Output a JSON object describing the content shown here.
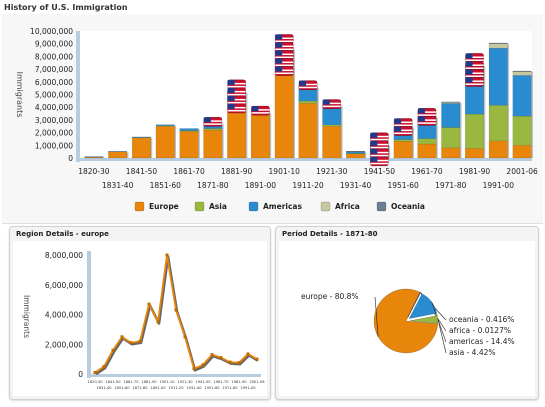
{
  "header": {
    "title": "History of U.S. Immigration"
  },
  "chart_data": [
    {
      "type": "bar",
      "stacked": true,
      "title": "",
      "ylabel": "Immigrants",
      "xlabel": "",
      "ylim": [
        0,
        10000000
      ],
      "y_ticks": [
        0,
        1000000,
        2000000,
        3000000,
        4000000,
        5000000,
        6000000,
        7000000,
        8000000,
        9000000,
        10000000
      ],
      "y_tick_labels": [
        "0",
        "1,000,000",
        "2,000,000",
        "3,000,000",
        "4,000,000",
        "5,000,000",
        "6,000,000",
        "7,000,000",
        "8,000,000",
        "9,000,000",
        "10,000,000"
      ],
      "categories": [
        "1820-30",
        "1831-40",
        "1841-50",
        "1851-60",
        "1861-70",
        "1871-80",
        "1881-90",
        "1891-00",
        "1901-10",
        "1911-20",
        "1921-30",
        "1931-40",
        "1941-50",
        "1951-60",
        "1961-70",
        "1971-80",
        "1981-90",
        "1991-00",
        "2001-06"
      ],
      "series": [
        {
          "name": "Europe",
          "color": "#e8860c",
          "values": [
            100000,
            500000,
            1600000,
            2500000,
            2100000,
            2200000,
            4700000,
            3500000,
            8000000,
            4300000,
            2500000,
            350000,
            620000,
            1300000,
            1100000,
            800000,
            760000,
            1350000,
            1000000
          ]
        },
        {
          "name": "Asia",
          "color": "#9ab840",
          "values": [
            0,
            0,
            0,
            40000,
            60000,
            120000,
            70000,
            70000,
            240000,
            190000,
            110000,
            16000,
            37000,
            150000,
            430000,
            1600000,
            2700000,
            2800000,
            2300000
          ]
        },
        {
          "name": "Americas",
          "color": "#2a8cd0",
          "values": [
            10000,
            30000,
            60000,
            80000,
            160000,
            400000,
            420000,
            40000,
            360000,
            1100000,
            1500000,
            160000,
            360000,
            1000000,
            1700000,
            1900000,
            3600000,
            4500000,
            3200000
          ]
        },
        {
          "name": "Africa",
          "color": "#c8c8a0",
          "values": [
            0,
            0,
            0,
            0,
            0,
            0,
            0,
            0,
            7000,
            8000,
            6000,
            2000,
            7000,
            14000,
            29000,
            80000,
            180000,
            350000,
            300000
          ]
        },
        {
          "name": "Oceania",
          "color": "#6a7f96",
          "values": [
            0,
            0,
            0,
            0,
            0,
            9000,
            13000,
            0,
            12000,
            13000,
            9000,
            2000,
            14000,
            12000,
            19000,
            41000,
            46000,
            56000,
            51000
          ]
        }
      ],
      "legend_position": "bottom",
      "annotations": "flag markers stacked above several bars"
    },
    {
      "type": "line",
      "title": "Region Details - europe",
      "ylabel": "Immigrants",
      "xlabel": "",
      "ylim": [
        0,
        8000000
      ],
      "y_ticks": [
        0,
        2000000,
        4000000,
        6000000,
        8000000
      ],
      "y_tick_labels": [
        "0",
        "2,000,000",
        "4,000,000",
        "6,000,000",
        "8,000,000"
      ],
      "x": [
        "1820-30",
        "1831-40",
        "1841-50",
        "1851-60",
        "1861-70",
        "1871-80",
        "1881-90",
        "1891-00",
        "1901-10",
        "1911-20",
        "1921-30",
        "1931-40",
        "1941-50",
        "1951-60",
        "1961-70",
        "1971-80",
        "1981-90",
        "1991-00",
        "2001-06"
      ],
      "x_tick_labels": [
        "1820-30",
        "1831-40",
        "1841-50",
        "1851-60",
        "1861-70",
        "1871-80",
        "1881-90",
        "1891-00",
        "1901-10",
        "1911-20",
        "1921-30",
        "1931-40",
        "1941-50",
        "1951-60",
        "1961-70",
        "1971-80",
        "1981-90",
        "1991-00",
        "2001-06"
      ],
      "series": [
        {
          "color": "#e8860c",
          "values": [
            100000,
            500000,
            1600000,
            2500000,
            2100000,
            2200000,
            4700000,
            3500000,
            8000000,
            4300000,
            2500000,
            350000,
            620000,
            1300000,
            1100000,
            800000,
            760000,
            1350000,
            1000000
          ]
        }
      ]
    },
    {
      "type": "pie",
      "title": "Period Details - 1871-80",
      "slices": [
        {
          "label": "europe - 80.8%",
          "value": 80.8,
          "color": "#e8860c"
        },
        {
          "label": "oceania - 0.416%",
          "value": 0.416,
          "color": "#6a7f96"
        },
        {
          "label": "africa - 0.0127%",
          "value": 0.0127,
          "color": "#c8c8a0"
        },
        {
          "label": "americas - 14.4%",
          "value": 14.4,
          "color": "#2a8cd0"
        },
        {
          "label": "asia - 4.42%",
          "value": 4.42,
          "color": "#9ab840"
        }
      ]
    }
  ]
}
